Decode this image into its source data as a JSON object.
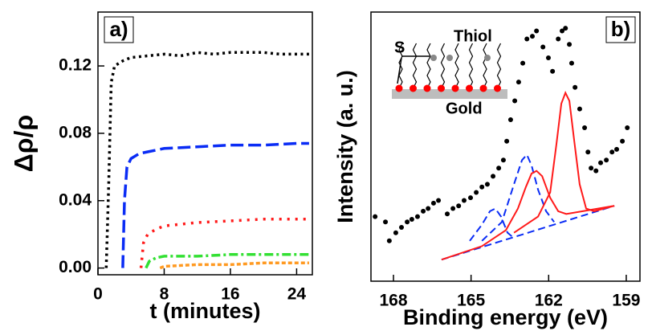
{
  "chart_data": [
    {
      "type": "line",
      "panel_label": "a)",
      "x_label": "t (minutes)",
      "y_label": "Δρ/ρ",
      "xlim": [
        0,
        25.9
      ],
      "xticks": [
        0,
        8,
        16,
        24
      ],
      "ylim": [
        -0.004,
        0.152
      ],
      "yticks": [
        {
          "value": 0,
          "label": "0.00"
        },
        {
          "value": 0.04,
          "label": "0.04"
        },
        {
          "value": 0.08,
          "label": "0.08"
        },
        {
          "value": 0.12,
          "label": "0.12"
        }
      ],
      "series": [
        {
          "color": "#000000",
          "x": [
            1,
            1.3,
            1.6,
            2,
            3,
            4,
            6,
            8,
            10,
            12,
            14,
            16,
            18,
            20,
            22,
            24,
            25.5
          ],
          "values": [
            0,
            0.05,
            0.11,
            0.12,
            0.123,
            0.125,
            0.126,
            0.127,
            0.126,
            0.128,
            0.127,
            0.128,
            0.128,
            0.128,
            0.127,
            0.127,
            0.127
          ]
        },
        {
          "color": "#0a2cf5",
          "x": [
            3,
            3.2,
            3.5,
            4,
            5,
            6,
            8,
            12,
            16,
            20,
            24,
            25.5
          ],
          "values": [
            0,
            0.04,
            0.06,
            0.065,
            0.068,
            0.069,
            0.071,
            0.072,
            0.073,
            0.073,
            0.074,
            0.074
          ]
        },
        {
          "color": "#ff1a1a",
          "x": [
            5.2,
            5.5,
            6,
            7,
            8,
            12,
            16,
            20,
            24,
            25.5
          ],
          "values": [
            0,
            0.015,
            0.02,
            0.023,
            0.025,
            0.027,
            0.028,
            0.029,
            0.029,
            0.029
          ]
        },
        {
          "color": "#33e033",
          "x": [
            5.8,
            6.2,
            7,
            8,
            12,
            16,
            20,
            24,
            25.5
          ],
          "values": [
            0,
            0.004,
            0.006,
            0.007,
            0.007,
            0.008,
            0.008,
            0.008,
            0.008
          ]
        },
        {
          "color": "#ff9a22",
          "x": [
            7.5,
            8,
            12,
            16,
            20,
            24,
            25.5
          ],
          "values": [
            0,
            0.001,
            0.002,
            0.002,
            0.003,
            0.003,
            0.003
          ]
        }
      ]
    },
    {
      "type": "scatter",
      "panel_label": "b)",
      "x_label": "Binding energy (eV)",
      "y_label": "Intensity (a. u.)",
      "inset_labels": [
        "S",
        "Thiol",
        "Gold"
      ],
      "xlim": [
        168.87,
        158.47
      ],
      "xticks": [
        168,
        165,
        162,
        159
      ],
      "ylim": [
        0,
        1
      ],
      "series": [
        {
          "style": "points",
          "color": "#000000",
          "x": [
            168.71,
            168.31,
            168.16,
            167.91,
            167.69,
            167.47,
            167.29,
            167.07,
            166.85,
            166.66,
            166.45,
            166.26,
            165.92,
            165.7,
            165.48,
            165.27,
            165.02,
            164.8,
            164.58,
            164.37,
            164.15,
            163.93,
            163.75,
            163.62,
            163.47,
            163.31,
            163.16,
            163.0,
            162.84,
            162.63,
            162.47,
            162.22,
            162.01,
            161.85,
            161.63,
            161.48,
            161.35,
            161.2,
            161.11,
            160.98,
            160.8,
            160.61,
            160.48,
            160.36,
            160.17,
            159.99,
            159.77,
            159.55,
            159.37,
            159.15,
            158.96
          ],
          "values": [
            0.24,
            0.22,
            0.15,
            0.18,
            0.2,
            0.22,
            0.23,
            0.24,
            0.26,
            0.27,
            0.29,
            0.3,
            0.25,
            0.27,
            0.28,
            0.3,
            0.31,
            0.33,
            0.35,
            0.36,
            0.39,
            0.42,
            0.45,
            0.52,
            0.6,
            0.67,
            0.74,
            0.81,
            0.9,
            0.91,
            0.93,
            0.87,
            0.83,
            0.78,
            0.9,
            0.93,
            0.94,
            0.88,
            0.81,
            0.72,
            0.64,
            0.57,
            0.48,
            0.42,
            0.41,
            0.44,
            0.45,
            0.48,
            0.49,
            0.52,
            0.57
          ]
        },
        {
          "style": "dashed",
          "color": "#0a2cf5",
          "x": [
            166.14,
            159.46
          ],
          "values": [
            0.08,
            0.28
          ]
        },
        {
          "style": "dashed",
          "color": "#0a2cf5",
          "x": [
            164.58,
            163.81,
            163.34,
            163.03,
            162.84,
            162.66,
            162.41,
            162.1,
            161.79
          ],
          "values": [
            0.15,
            0.22,
            0.36,
            0.45,
            0.47,
            0.43,
            0.34,
            0.26,
            0.22
          ]
        },
        {
          "style": "dashed",
          "color": "#0a2cf5",
          "x": [
            165.05,
            164.58,
            164.27,
            164.06,
            163.84,
            163.59,
            163.34
          ],
          "values": [
            0.15,
            0.21,
            0.26,
            0.27,
            0.24,
            0.18,
            0.16
          ]
        },
        {
          "style": "solid",
          "color": "#ff1a1a",
          "x": [
            166.14,
            164.58,
            163.65,
            163.19,
            162.88,
            162.66,
            162.47,
            162.25,
            161.94,
            161.63,
            161.32,
            159.46
          ],
          "values": [
            0.08,
            0.13,
            0.19,
            0.27,
            0.35,
            0.4,
            0.41,
            0.39,
            0.31,
            0.26,
            0.25,
            0.28
          ]
        },
        {
          "style": "solid",
          "color": "#ff1a1a",
          "x": [
            163.34,
            162.41,
            161.94,
            161.7,
            161.51,
            161.35,
            161.2,
            161.01,
            160.8,
            160.55,
            160.24,
            159.46
          ],
          "values": [
            0.18,
            0.24,
            0.33,
            0.51,
            0.66,
            0.7,
            0.67,
            0.52,
            0.36,
            0.27,
            0.26,
            0.28
          ]
        }
      ]
    }
  ]
}
